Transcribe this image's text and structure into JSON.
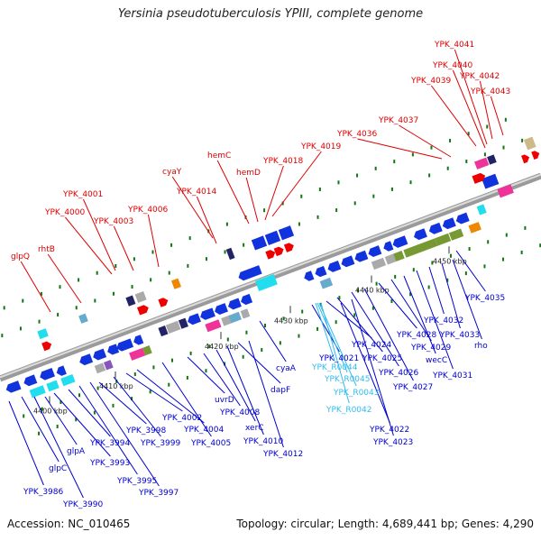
{
  "title": "Yersinia pseudotuberculosis YPIII, complete genome",
  "footer": {
    "accession": "Accession: NC_010465",
    "stats": "Topology: circular; Length: 4,689,441 bp; Genes: 4,290"
  },
  "colors": {
    "backbone": "#9a9a9a",
    "forward_label": "#dd0000",
    "reverse_label": "#0000cc",
    "rna_label": "#33bbee",
    "tick": "#117711"
  },
  "scale_marks": [
    {
      "value": 4400,
      "text": "4400 kbp"
    },
    {
      "value": 4410,
      "text": "4410 kbp"
    },
    {
      "value": 4420,
      "text": "4420 kbp"
    },
    {
      "value": 4430,
      "text": "4430 kbp"
    },
    {
      "value": 4440,
      "text": "4440 kbp"
    },
    {
      "value": 4450,
      "text": "4450 kbp"
    }
  ],
  "forward_genes": [
    "glpQ",
    "rhtB",
    "YPK_4000",
    "YPK_4001",
    "YPK_4003",
    "YPK_4006",
    "YPK_4014",
    "cyaY",
    "hemC",
    "hemD",
    "YPK_4018",
    "YPK_4019",
    "YPK_4036",
    "YPK_4037",
    "YPK_4039",
    "YPK_4040",
    "YPK_4041",
    "YPK_4042",
    "YPK_4043"
  ],
  "reverse_genes": [
    "YPK_3986",
    "glpC",
    "YPK_3990",
    "glpA",
    "YPK_3993",
    "YPK_3994",
    "YPK_3995",
    "YPK_3997",
    "YPK_3998",
    "YPK_3999",
    "YPK_4002",
    "YPK_4004",
    "YPK_4005",
    "uvrD",
    "YPK_4008",
    "xerC",
    "YPK_4010",
    "dapF",
    "YPK_4012",
    "cyaA",
    "YPK_4021",
    "YPK_4022",
    "YPK_4023",
    "YPK_4024",
    "YPK_4025",
    "YPK_4026",
    "YPK_4027",
    "YPK_4028",
    "YPK_4029",
    "wecC",
    "YPK_4031",
    "YPK_4032",
    "YPK_4033",
    "rho",
    "YPK_4035"
  ],
  "rna_genes": [
    "YPK_R0044",
    "YPK_R0045",
    "YPK_R0043",
    "YPK_R0042"
  ]
}
